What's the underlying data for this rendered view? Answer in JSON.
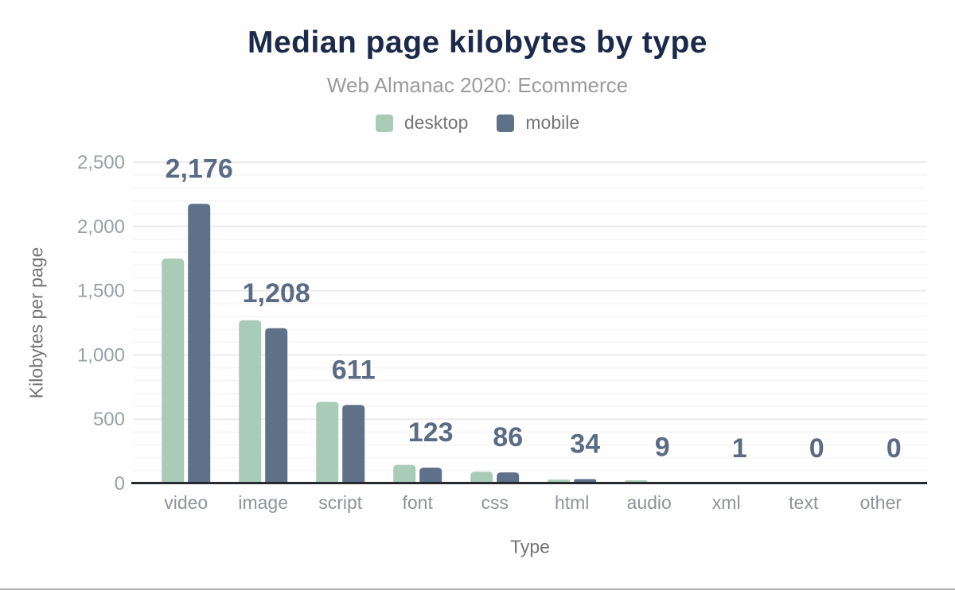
{
  "chart_data": {
    "type": "bar",
    "title": "Median page kilobytes by type",
    "subtitle": "Web Almanac 2020: Ecommerce",
    "xlabel": "Type",
    "ylabel": "Kilobytes per page",
    "categories": [
      "video",
      "image",
      "script",
      "font",
      "css",
      "html",
      "audio",
      "xml",
      "text",
      "other"
    ],
    "series": [
      {
        "name": "desktop",
        "color": "#a8ccb8",
        "values": [
          1750,
          1270,
          635,
          145,
          91,
          30,
          25,
          1,
          0,
          0
        ]
      },
      {
        "name": "mobile",
        "color": "#5e7189",
        "values": [
          2176,
          1208,
          611,
          123,
          86,
          34,
          9,
          1,
          0,
          0
        ]
      }
    ],
    "value_labels": [
      "2,176",
      "1,208",
      "611",
      "123",
      "86",
      "34",
      "9",
      "1",
      "0",
      "0"
    ],
    "value_labels_series": "mobile",
    "ylim": [
      0,
      2500
    ],
    "yticks": [
      0,
      500,
      1000,
      1500,
      2000,
      2500
    ],
    "ytick_labels": [
      "0",
      "500",
      "1,000",
      "1,500",
      "2,000",
      "2,500"
    ],
    "grid": {
      "minor_step": 100,
      "major_step": 500,
      "minor_color": "#f7f7f7",
      "major_color": "#ececec"
    },
    "legend_position": "top",
    "colors": {
      "title": "#1b2a4a",
      "subtitle": "#9b9b9b",
      "axis_line": "#26292e",
      "tick_label": "#9aa0a6",
      "category_label": "#8f9399",
      "value_label": "#5a6c85",
      "axis_title": "#757575"
    }
  }
}
